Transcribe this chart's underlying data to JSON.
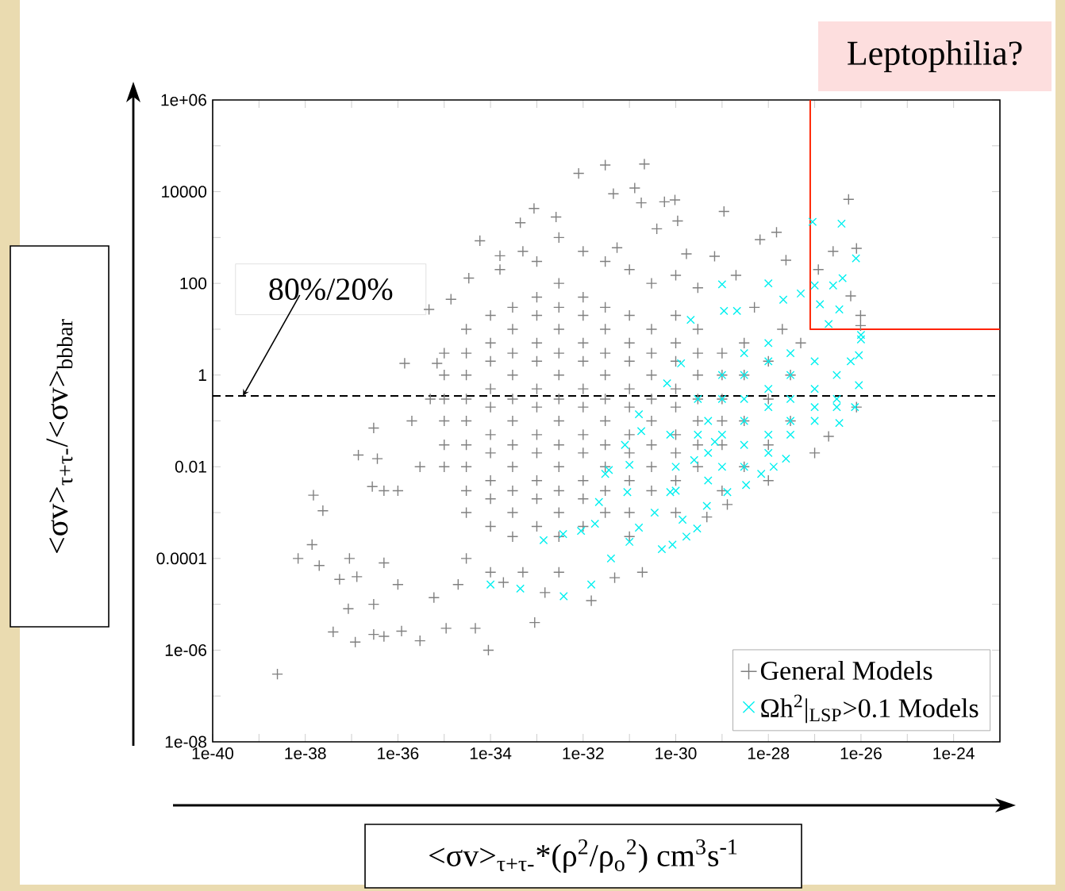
{
  "chart_data": {
    "type": "scatter",
    "title": "Leptophilia?",
    "xlabel": "<σv>$_{τ+τ-}$*(ρ$^{2}$/ρ$_{o}$$^{2}$) cm$^{3}$s$^{-1}$",
    "ylabel": "<σv>$_{τ+τ-}$/<σv>$_{bbbar}$",
    "log": "xy",
    "legend": "bottom right",
    "xlim": [
      1e-40,
      1e-23
    ],
    "ylim": [
      1e-08,
      1000000
    ],
    "xticks": [
      {
        "value": 1e-40,
        "label": "1e-40"
      },
      {
        "value": 1e-39,
        "label": null
      },
      {
        "value": 1e-38,
        "label": "1e-38"
      },
      {
        "value": 1e-37,
        "label": null
      },
      {
        "value": 1e-36,
        "label": "1e-36"
      },
      {
        "value": 1e-35,
        "label": null
      },
      {
        "value": 1e-34,
        "label": "1e-34"
      },
      {
        "value": 1e-33,
        "label": null
      },
      {
        "value": 1e-32,
        "label": "1e-32"
      },
      {
        "value": 1e-31,
        "label": null
      },
      {
        "value": 1e-30,
        "label": "1e-30"
      },
      {
        "value": 1e-29,
        "label": null
      },
      {
        "value": 1e-28,
        "label": "1e-28"
      },
      {
        "value": 1e-27,
        "label": null
      },
      {
        "value": 1e-26,
        "label": "1e-26"
      },
      {
        "value": 1e-25,
        "label": null
      },
      {
        "value": 1e-24,
        "label": "1e-24"
      }
    ],
    "yticks": [
      {
        "value": 1e-08,
        "label": "1e-08"
      },
      {
        "value": 1e-07,
        "label": null
      },
      {
        "value": 1e-06,
        "label": "1e-06"
      },
      {
        "value": 1e-05,
        "label": null
      },
      {
        "value": 0.0001,
        "label": "0.0001"
      },
      {
        "value": 0.001,
        "label": null
      },
      {
        "value": 0.01,
        "label": "0.01"
      },
      {
        "value": 0.1,
        "label": null
      },
      {
        "value": 1,
        "label": "1"
      },
      {
        "value": 10,
        "label": null
      },
      {
        "value": 100,
        "label": "100"
      },
      {
        "value": 1000,
        "label": null
      },
      {
        "value": 10000,
        "label": "10000"
      },
      {
        "value": 100000,
        "label": null
      },
      {
        "value": 1000000,
        "label": "1e+06"
      }
    ],
    "ref_lines": [
      {
        "axis": "y",
        "value": 0.35,
        "color": "#000000",
        "line_style": "dashed"
      }
    ],
    "annotations": [
      {
        "text": "80%/20%",
        "x": 4.5e-40,
        "y": 0.35
      }
    ],
    "series": [
      {
        "name": "General Models",
        "color": "#808080",
        "marker": "plus",
        "x": [
          2.5e-39,
          7e-39,
          1.5e-38,
          2.4e-38,
          1.4e-38,
          2e-38,
          4e-38,
          1.2e-37,
          3e-37,
          5e-37,
          1.2e-36,
          3e-36,
          9e-35,
          9e-34,
          4.7e-35,
          1.1e-35,
          3e-37,
          8.5e-38,
          5.5e-38,
          1.3e-37,
          3e-37,
          1.4e-37,
          3.6e-37,
          2.8e-37,
          9e-38,
          5e-37,
          1e-36,
          6e-36,
          2e-35,
          1.9e-34,
          1.5e-33,
          1.5e-32,
          4.8e-32,
          1.9e-31,
          4.7e-30,
          1.3e-29,
          2e-27,
          8e-27,
          5.9e-35,
          1.6e-34,
          1.6e-34,
          3.4e-35,
          4.7e-36,
          1.4e-36,
          7e-36,
          1.4e-35,
          8.7e-34,
          8e-33,
          3e-32,
          4.4e-34,
          2.6e-33,
          2.1e-31,
          1.3e-31,
          4.5e-32,
          1.8e-31,
          5.7e-31,
          9.6e-31,
          1.1e-29,
          1.1e-30,
          5.4e-27,
          6e-27,
          2.5e-27,
          1.5e-28,
          6.6e-29,
          3.9e-31,
          5.4e-32,
          1.7e-30,
          6.9e-30,
          2.4e-28,
          1.2e-27,
          9.8e-27,
          9.8e-27,
          8e-27,
          5e-34,
          1e-33,
          3e-33,
          1e-32,
          3e-32,
          1e-31,
          3e-31,
          1e-30,
          3e-30,
          2e-29,
          5e-29,
          2e-28,
          5e-28,
          3e-35,
          1e-34,
          5e-34,
          3e-33,
          1e-31,
          1e-30,
          1e-29,
          1e-28,
          1e-27,
          3e-36,
          1e-36,
          5e-36,
          2e-36,
          5e-37,
          1e-35,
          1e-35,
          1e-35,
          1e-35,
          1e-35,
          1e-35,
          3e-35,
          3e-35,
          3e-35,
          3e-35,
          3e-35,
          3e-35,
          3e-35,
          3e-35,
          3e-35,
          1e-34,
          1e-34,
          1e-34,
          1e-34,
          1e-34,
          1e-34,
          1e-34,
          1e-34,
          1e-34,
          1e-34,
          3e-34,
          3e-34,
          3e-34,
          3e-34,
          3e-34,
          3e-34,
          3e-34,
          3e-34,
          3e-34,
          3e-34,
          3e-34,
          1e-33,
          1e-33,
          1e-33,
          1e-33,
          1e-33,
          1e-33,
          1e-33,
          1e-33,
          1e-33,
          1e-33,
          1e-33,
          3e-33,
          3e-33,
          3e-33,
          3e-33,
          3e-33,
          3e-33,
          3e-33,
          3e-33,
          3e-33,
          3e-33,
          3e-33,
          3e-33,
          1e-32,
          1e-32,
          1e-32,
          1e-32,
          1e-32,
          1e-32,
          1e-32,
          1e-32,
          1e-32,
          1e-32,
          1e-32,
          3e-32,
          3e-32,
          3e-32,
          3e-32,
          3e-32,
          3e-32,
          3e-32,
          3e-32,
          3e-32,
          3e-32,
          1e-31,
          1e-31,
          1e-31,
          1e-31,
          1e-31,
          1e-31,
          1e-31,
          1e-31,
          1e-31,
          3e-31,
          3e-31,
          3e-31,
          3e-31,
          3e-31,
          3e-31,
          3e-31,
          3e-31,
          1e-30,
          1e-30,
          1e-30,
          1e-30,
          1e-30,
          1e-30,
          1e-30,
          1e-30,
          3e-30,
          3e-30,
          3e-30,
          3e-30,
          3e-30,
          3e-30,
          3e-30,
          1e-29,
          1e-29,
          1e-29,
          1e-29,
          1e-29,
          3e-29,
          3e-29,
          3e-29,
          3e-29,
          1e-28,
          1e-28,
          1e-28,
          3e-28,
          3e-28
        ],
        "values": [
          3e-07,
          0.0001,
          0.0024,
          0.0011,
          0.0002,
          7e-05,
          2.5e-06,
          1.5e-06,
          2.2e-06,
          2e-06,
          2.6e-06,
          1.6e-06,
          1e-06,
          4e-06,
          3e-06,
          3e-06,
          1e-05,
          8e-06,
          3.5e-05,
          4e-05,
          0.07,
          0.018,
          0.015,
          0.0037,
          0.0001,
          8e-05,
          2.7e-05,
          1.4e-05,
          2.7e-05,
          3e-05,
          1.8e-05,
          1.2e-05,
          3.8e-05,
          5e-05,
          0.0008,
          0.0015,
          0.046,
          0.2,
          850,
          400,
          200,
          130,
          27,
          1.8,
          1.8,
          45,
          4300,
          25000,
          38000,
          2100,
          2800,
          40000,
          12000,
          9000,
          5700,
          6000,
          6600,
          3700,
          2300,
          6800,
          53,
          500,
          1300,
          900,
          1550,
          600,
          440,
          390,
          320,
          200,
          20,
          12,
          580,
          500,
          300,
          1000,
          500,
          300,
          200,
          100,
          150,
          80,
          150,
          30,
          10,
          5,
          0.0001,
          5e-05,
          5e-05,
          5e-05,
          0.0003,
          0.001,
          0.003,
          0.005,
          0.02,
          0.01,
          0.003,
          0.3,
          0.1,
          0.003,
          0.01,
          0.03,
          0.1,
          0.3,
          1,
          3,
          0.001,
          0.003,
          0.01,
          0.03,
          0.1,
          0.3,
          1,
          3,
          10,
          0.0005,
          0.002,
          0.005,
          0.02,
          0.05,
          0.2,
          0.5,
          2,
          5,
          20,
          0.0003,
          0.001,
          0.003,
          0.01,
          0.03,
          0.1,
          0.3,
          1,
          3,
          10,
          30,
          0.0005,
          0.002,
          0.005,
          0.02,
          0.05,
          0.2,
          0.5,
          2,
          5,
          20,
          50,
          0.0003,
          0.001,
          0.003,
          0.01,
          0.03,
          0.1,
          0.3,
          1,
          3,
          10,
          30,
          100,
          0.0005,
          0.002,
          0.005,
          0.02,
          0.05,
          0.2,
          0.5,
          2,
          5,
          20,
          50,
          0.001,
          0.003,
          0.01,
          0.03,
          0.1,
          0.3,
          1,
          3,
          10,
          30,
          0.001,
          0.005,
          0.02,
          0.05,
          0.2,
          0.5,
          2,
          5,
          20,
          0.003,
          0.01,
          0.03,
          0.1,
          0.3,
          1,
          3,
          10,
          0.005,
          0.02,
          0.05,
          0.2,
          0.5,
          2,
          5,
          20,
          0.01,
          0.03,
          0.1,
          0.3,
          1,
          3,
          10,
          0.03,
          0.1,
          0.3,
          1,
          3,
          0.01,
          0.1,
          1,
          5,
          0.03,
          0.3,
          2,
          0.1,
          1
        ]
      },
      {
        "name": "Ωh$^{2}$|$_{LSP}$>0.1 Models",
        "color": "#00f0f0",
        "marker": "cross",
        "x": [
          1e-34,
          4.4e-34,
          3.8e-33,
          1.5e-32,
          1.4e-33,
          3.7e-33,
          9e-33,
          1.8e-32,
          2.2e-32,
          3e-32,
          1.6e-31,
          1.8e-31,
          8e-32,
          1e-31,
          3.6e-32,
          9e-32,
          1.6e-31,
          1e-31,
          4e-32,
          5e-31,
          8.5e-31,
          1.7e-30,
          2.9e-30,
          1.4e-30,
          3.3e-29,
          7e-29,
          1.3e-28,
          2.4e-28,
          1.3e-29,
          4.7e-30,
          3.5e-31,
          7.6e-31,
          2.5e-30,
          7e-30,
          7.6e-31,
          3.4e-27,
          7.4e-27,
          9e-27,
          9e-28,
          3.8e-27,
          7.8e-27,
          4e-27,
          2.5e-27,
          1e-27,
          1.3e-27,
          3.4e-27,
          2e-27,
          1e-26,
          1e-26,
          9e-27,
          6e-27,
          1e-29,
          1e-28,
          2.1e-28,
          5e-28,
          2.1e-30,
          1.1e-29,
          2.1e-29,
          1.3e-30,
          6.5e-31,
          5e-30,
          5e-30,
          5e-30,
          1e-29,
          1e-29,
          1e-29,
          1e-29,
          3e-29,
          3e-29,
          3e-29,
          3e-29,
          3e-29,
          3e-29,
          1e-28,
          1e-28,
          1e-28,
          1e-28,
          1e-28,
          1e-28,
          3e-28,
          3e-28,
          3e-28,
          3e-28,
          3e-28,
          1e-27,
          1e-27,
          1e-27,
          1e-27,
          3e-27,
          3e-27,
          3e-27,
          1e-30,
          1e-30,
          3e-30,
          3e-30
        ],
        "values": [
          2.7e-05,
          2.2e-05,
          1.5e-05,
          2.7e-05,
          0.00025,
          0.00034,
          0.0004,
          0.00057,
          0.0017,
          0.007,
          0.14,
          0.06,
          0.03,
          0.011,
          0.0085,
          0.0028,
          0.00047,
          0.00023,
          0.0001,
          0.00016,
          0.0002,
          0.0003,
          0.00045,
          0.0007,
          0.004,
          0.007,
          0.01,
          0.015,
          0.0028,
          0.0014,
          0.001,
          0.0028,
          0.014,
          0.035,
          0.05,
          0.09,
          0.2,
          0.6,
          2200,
          2000,
          350,
          130,
          90,
          90,
          35,
          27,
          13,
          7.5,
          6,
          2.7,
          2,
          95,
          100,
          44,
          60,
          16,
          25,
          25,
          1.8,
          0.66,
          0.005,
          0.02,
          0.1,
          0.01,
          0.05,
          0.3,
          1,
          0.01,
          0.03,
          0.1,
          0.3,
          1,
          3,
          0.02,
          0.05,
          0.2,
          0.5,
          2,
          5,
          0.05,
          0.1,
          0.3,
          1,
          3,
          0.1,
          0.2,
          0.5,
          2,
          0.2,
          0.3,
          1,
          0.01,
          0.003,
          0.05,
          0.3
        ]
      },
      {
        "type": "line",
        "color": "#ff2200",
        "x": [
          8e-28,
          8e-28,
          1e-23
        ],
        "values": [
          1000000,
          10,
          10
        ]
      }
    ]
  }
}
